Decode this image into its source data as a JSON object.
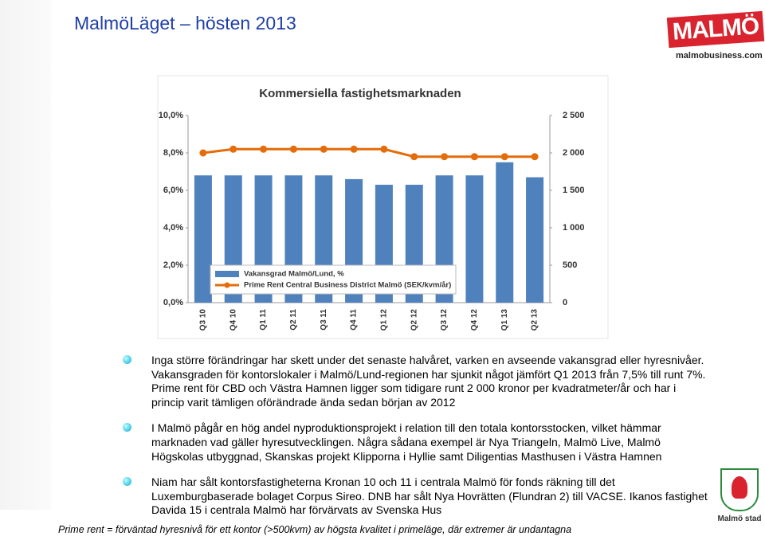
{
  "title": "MalmöLäget – hösten 2013",
  "logo": {
    "name": "MALMÖ",
    "url": "malmobusiness.com"
  },
  "chart_data": {
    "type": "bar-line",
    "title": "Kommersiella fastighetsmarknaden",
    "categories": [
      "Q3 10",
      "Q4 10",
      "Q1 11",
      "Q2 11",
      "Q3 11",
      "Q4 11",
      "Q1 12",
      "Q2 12",
      "Q3 12",
      "Q4 12",
      "Q1 13",
      "Q2 13"
    ],
    "series": [
      {
        "name": "Vakansgrad Malmö/Lund, %",
        "type": "bar",
        "color": "#4f81bd",
        "values": [
          6.8,
          6.8,
          6.8,
          6.8,
          6.8,
          6.6,
          6.3,
          6.3,
          6.8,
          6.8,
          7.5,
          6.7
        ]
      },
      {
        "name": "Prime Rent Central Business District Malmö (SEK/kvm/år)",
        "type": "line",
        "axis": "y2",
        "color": "#e46c0a",
        "values": [
          2000,
          2050,
          2050,
          2050,
          2050,
          2050,
          2050,
          1950,
          1950,
          1950,
          1950,
          1950
        ]
      }
    ],
    "ylim": [
      0,
      10
    ],
    "yticks": [
      {
        "value": 0,
        "label": "0,0%"
      },
      {
        "value": 2,
        "label": "2,0%"
      },
      {
        "value": 4,
        "label": "4,0%"
      },
      {
        "value": 6,
        "label": "6,0%"
      },
      {
        "value": 8,
        "label": "8,0%"
      },
      {
        "value": 10,
        "label": "10,0%"
      }
    ],
    "y2lim": [
      0,
      2500
    ],
    "y2ticks": [
      0,
      500,
      {
        "value": 1000,
        "label": "1 000"
      },
      {
        "value": 1500,
        "label": "1 500"
      },
      {
        "value": 2000,
        "label": "2 000"
      },
      {
        "value": 2500,
        "label": "2 500"
      }
    ],
    "grid": false
  },
  "bullets": [
    "Inga större förändringar har skett under det senaste halvåret, varken en avseende vakansgrad eller hyresnivåer. Vakansgraden för kontorslokaler i Malmö/Lund-regionen har sjunkit något jämfört Q1 2013 från 7,5% till runt 7%. Prime rent för CBD och Västra Hamnen ligger som tidigare runt 2 000 kronor per kvadratmeter/år och har i princip varit tämligen oförändrade ända sedan början av 2012",
    "I Malmö pågår en hög andel nyproduktionsprojekt i relation till den totala kontorsstocken, vilket hämmar marknaden vad gäller hyresutvecklingen. Några sådana exempel är Nya Triangeln, Malmö Live, Malmö Högskolas utbyggnad, Skanskas projekt Klipporna i Hyllie samt Diligentias Masthusen i Västra Hamnen",
    "Niam har sålt kontorsfastigheterna Kronan 10 och 11 i centrala Malmö för fonds räkning till det Luxemburgbaserade bolaget Corpus Sireo. DNB har sålt Nya Hovrätten (Flundran 2) till VACSE. Ikanos fastighet Davida 15 i centrala Malmö har förvärvats av Svenska Hus"
  ],
  "footnote": "Prime rent = förväntad hyresnivå för ett kontor (>500kvm) av högsta kvalitet i primeläge, där extremer är undantagna",
  "city_logo": "Malmö stad"
}
